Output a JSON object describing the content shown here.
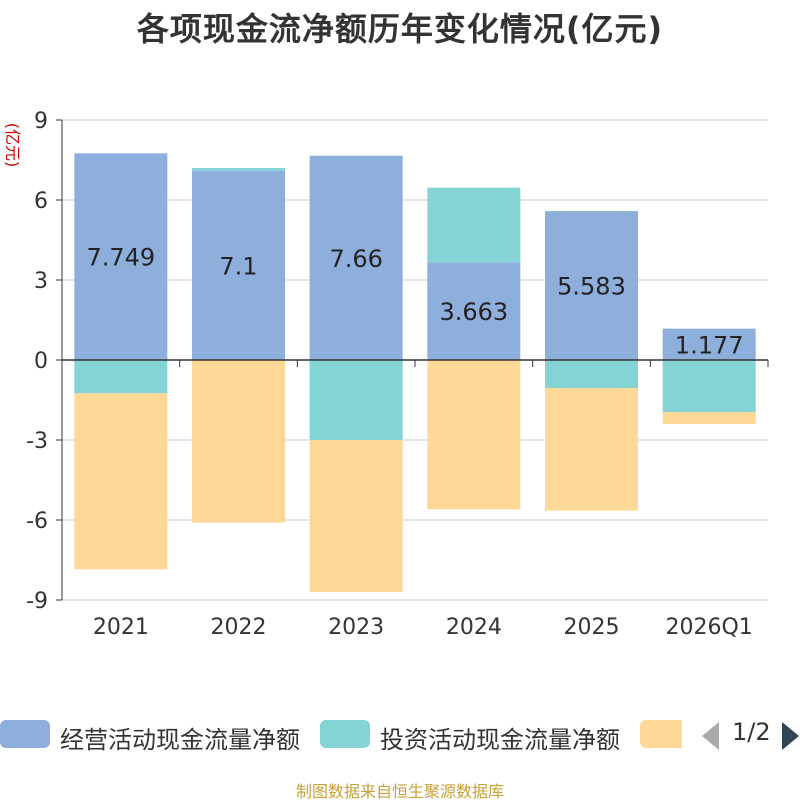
{
  "title": "各项现金流净额历年变化情况(亿元)",
  "source": "制图数据来自恒生聚源数据库",
  "legend_pager": "1/2",
  "chart_data": {
    "type": "bar",
    "stacked": true,
    "categories": [
      "2021",
      "2022",
      "2023",
      "2024",
      "2025",
      "2026Q1"
    ],
    "ylabel": "(亿元)",
    "ylim": [
      -9,
      9
    ],
    "yticks": [
      "9",
      "6",
      "3",
      "0",
      "-3",
      "-6",
      "-9"
    ],
    "series": [
      {
        "name": "经营活动现金流量净额",
        "color": "#8eaedb",
        "values": [
          7.749,
          7.1,
          7.66,
          3.663,
          5.583,
          1.177
        ],
        "labels": [
          "7.749",
          "7.1",
          "7.66",
          "3.663",
          "5.583",
          "1.177"
        ]
      },
      {
        "name": "投资活动现金流量净额",
        "color": "#84d4d6",
        "values": [
          -1.25,
          0.1,
          -3.0,
          2.8,
          -1.05,
          -1.95
        ]
      },
      {
        "name": "",
        "color": "#fdd897",
        "values": [
          -6.6,
          -6.1,
          -5.7,
          -5.6,
          -4.6,
          -0.45
        ]
      }
    ]
  }
}
